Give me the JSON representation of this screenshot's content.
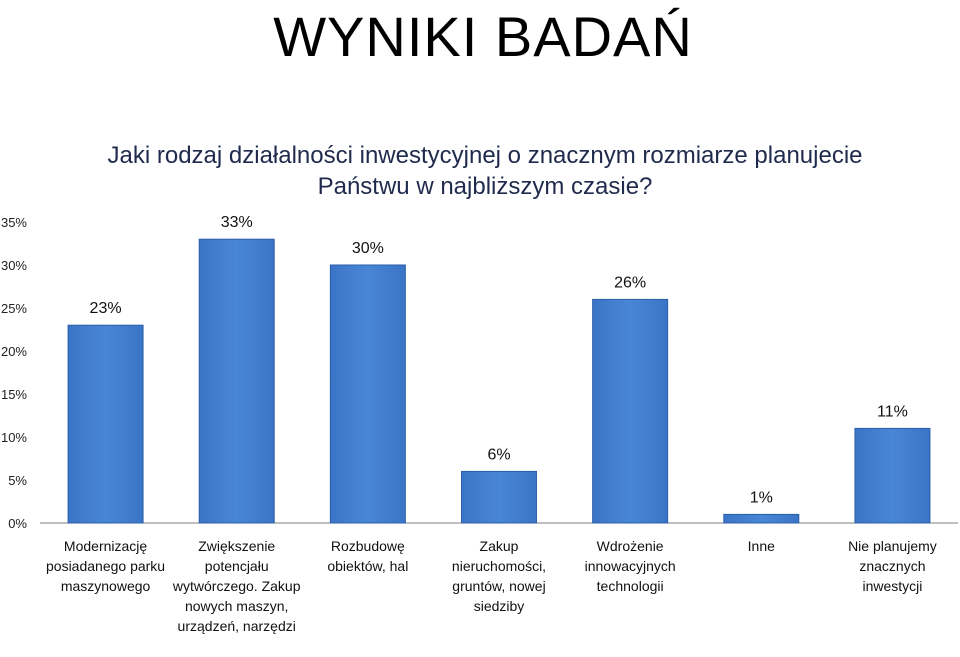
{
  "page_title": "WYNIKI BADAŃ",
  "chart_data": {
    "type": "bar",
    "title": "Jaki rodzaj działalności inwestycyjnej o znacznym rozmiarze planujecie Państwu w najbliższym czasie?",
    "categories": [
      "Modernizację posiadanego parku maszynowego",
      "Zwiększenie potencjału wytwórczego. Zakup nowych maszyn, urządzeń, narzędzi",
      "Rozbudowę obiektów, hal",
      "Zakup nieruchomości, gruntów, nowej siedziby",
      "Wdrożenie innowacyjnych technologii",
      "Inne",
      "Nie planujemy znacznych inwestycji"
    ],
    "values": [
      23,
      33,
      30,
      6,
      26,
      1,
      11
    ],
    "data_labels": [
      "23%",
      "33%",
      "30%",
      "6%",
      "26%",
      "1%",
      "11%"
    ],
    "y_ticks": [
      "0%",
      "5%",
      "10%",
      "15%",
      "20%",
      "25%",
      "30%",
      "35%"
    ],
    "ylim": [
      0,
      35
    ],
    "bar_color": "#4a86d6",
    "bar_edge_color": "#2b5fa8",
    "grid": false,
    "legend": "none"
  }
}
